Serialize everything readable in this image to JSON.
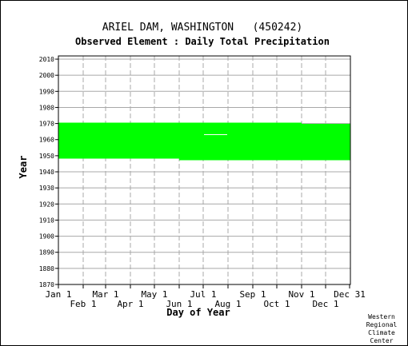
{
  "chart_data": {
    "type": "heatmap",
    "title": "ARIEL DAM, WASHINGTON   (450242)",
    "subtitle": "Observed Element : Daily Total Precipitation",
    "xlabel": "Day of Year",
    "ylabel": "Year",
    "xlim": [
      1,
      366
    ],
    "ylim": [
      1870,
      2012
    ],
    "x_ticks_upper": [
      {
        "label": "Jan 1",
        "day": 1
      },
      {
        "label": "Mar 1",
        "day": 60
      },
      {
        "label": "May 1",
        "day": 121
      },
      {
        "label": "Jul 1",
        "day": 182
      },
      {
        "label": "Sep 1",
        "day": 244
      },
      {
        "label": "Nov 1",
        "day": 305
      },
      {
        "label": "Dec 31",
        "day": 365
      }
    ],
    "x_ticks_lower": [
      {
        "label": "Feb 1",
        "day": 32
      },
      {
        "label": "Apr 1",
        "day": 91
      },
      {
        "label": "Jun 1",
        "day": 152
      },
      {
        "label": "Aug 1",
        "day": 213
      },
      {
        "label": "Oct 1",
        "day": 274
      },
      {
        "label": "Dec 1",
        "day": 335
      }
    ],
    "y_ticks": [
      1870,
      1880,
      1890,
      1900,
      1910,
      1920,
      1930,
      1940,
      1950,
      1960,
      1970,
      1980,
      1990,
      2000,
      2010
    ],
    "grid": true,
    "data_color": "#00ff00",
    "records": [
      {
        "day_start": 1,
        "day_end": 152,
        "year_start": 1948.2,
        "year_end": 1970.6
      },
      {
        "day_start": 152,
        "day_end": 305,
        "year_start": 1947.2,
        "year_end": 1970.6
      },
      {
        "day_start": 305,
        "day_end": 366,
        "year_start": 1947.2,
        "year_end": 1969.8
      }
    ],
    "gaps": [
      {
        "day_start": 183,
        "day_end": 212,
        "year_start": 1962.8,
        "year_end": 1963.4
      }
    ]
  },
  "credit": [
    "Western",
    "Regional",
    "Climate",
    "Center"
  ]
}
